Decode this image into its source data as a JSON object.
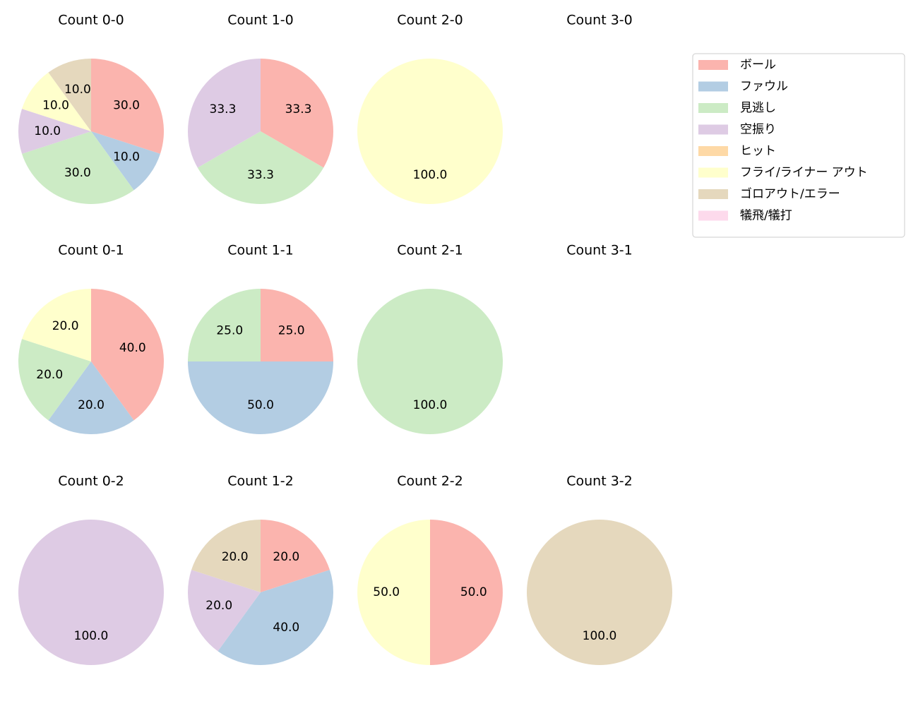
{
  "chart_data": [
    {
      "type": "pie",
      "title": "Count 0-0",
      "legend": "upper right",
      "categories": [
        "ボール",
        "ファウル",
        "見逃し",
        "空振り",
        "ヒット",
        "フライ/ライナー アウト",
        "ゴロアウト/エラー",
        "犠飛/犠打"
      ],
      "colors": [
        "#fbb4ae",
        "#b3cde3",
        "#ccebc5",
        "#decbe4",
        "#fed9a6",
        "#ffffcc",
        "#e5d8bd",
        "#fddaec"
      ],
      "values": [
        30,
        10,
        30,
        10,
        0,
        10,
        10,
        0
      ],
      "value_labels": [
        "30.0",
        "10.0",
        "30.0",
        "10.0",
        null,
        "10.0",
        "10.0",
        null
      ]
    },
    {
      "type": "pie",
      "title": "Count 1-0",
      "categories": [
        "ボール",
        "ファウル",
        "見逃し",
        "空振り",
        "ヒット",
        "フライ/ライナー アウト",
        "ゴロアウト/エラー",
        "犠飛/犠打"
      ],
      "colors": [
        "#fbb4ae",
        "#b3cde3",
        "#ccebc5",
        "#decbe4",
        "#fed9a6",
        "#ffffcc",
        "#e5d8bd",
        "#fddaec"
      ],
      "values": [
        33.3,
        0,
        33.3,
        33.3,
        0,
        0,
        0,
        0
      ]
    },
    {
      "type": "pie",
      "title": "Count 2-0",
      "categories": [
        "ボール",
        "ファウル",
        "見逃し",
        "空振り",
        "ヒット",
        "フライ/ライナー アウト",
        "ゴロアウト/エラー",
        "犠飛/犠打"
      ],
      "colors": [
        "#fbb4ae",
        "#b3cde3",
        "#ccebc5",
        "#decbe4",
        "#fed9a6",
        "#ffffcc",
        "#e5d8bd",
        "#fddaec"
      ],
      "values": [
        0,
        0,
        0,
        0,
        0,
        100,
        0,
        0
      ],
      "value_labels": [
        null,
        null,
        null,
        null,
        null,
        "100.0",
        null,
        null
      ]
    },
    {
      "type": "pie",
      "title": "Count 3-0",
      "categories": [
        "ボール",
        "ファウル",
        "見逃し",
        "空振り",
        "ヒット",
        "フライ/ライナー アウト",
        "ゴロアウト/エラー",
        "犠飛/犠打"
      ],
      "colors": [
        "#fbb4ae",
        "#b3cde3",
        "#ccebc5",
        "#decbe4",
        "#fed9a6",
        "#ffffcc",
        "#e5d8bd",
        "#fddaec"
      ],
      "values": [
        0,
        0,
        0,
        0,
        0,
        0,
        0,
        0
      ]
    },
    {
      "type": "pie",
      "title": "Count 0-1",
      "categories": [
        "ボール",
        "ファウル",
        "見逃し",
        "空振り",
        "ヒット",
        "フライ/ライナー アウト",
        "ゴロアウト/エラー",
        "犠飛/犠打"
      ],
      "colors": [
        "#fbb4ae",
        "#b3cde3",
        "#ccebc5",
        "#decbe4",
        "#fed9a6",
        "#ffffcc",
        "#e5d8bd",
        "#fddaec"
      ],
      "values": [
        40,
        20,
        20,
        0,
        0,
        20,
        0,
        0
      ],
      "value_labels": [
        "40.0",
        "20.0",
        "20.0",
        null,
        null,
        "20.0",
        null,
        null
      ]
    },
    {
      "type": "pie",
      "title": "Count 1-1",
      "categories": [
        "ボール",
        "ファウル",
        "見逃し",
        "空振り",
        "ヒット",
        "フライ/ライナー アウト",
        "ゴロアウト/エラー",
        "犠飛/犠打"
      ],
      "colors": [
        "#fbb4ae",
        "#b3cde3",
        "#ccebc5",
        "#decbe4",
        "#fed9a6",
        "#ffffcc",
        "#e5d8bd",
        "#fddaec"
      ],
      "values": [
        25,
        50,
        25,
        0,
        0,
        0,
        0,
        0
      ],
      "value_labels": [
        "25.0",
        "50.0",
        "25.0",
        null,
        null,
        null,
        null,
        null
      ]
    },
    {
      "type": "pie",
      "title": "Count 2-1",
      "categories": [
        "ボール",
        "ファウル",
        "見逃し",
        "空振り",
        "ヒット",
        "フライ/ライナー アウト",
        "ゴロアウト/エラー",
        "犠飛/犠打"
      ],
      "colors": [
        "#fbb4ae",
        "#b3cde3",
        "#ccebc5",
        "#decbe4",
        "#fed9a6",
        "#ffffcc",
        "#e5d8bd",
        "#fddaec"
      ],
      "values": [
        0,
        0,
        100,
        0,
        0,
        0,
        0,
        0
      ],
      "value_labels": [
        null,
        null,
        "100.0",
        null,
        null,
        null,
        null,
        null
      ]
    },
    {
      "type": "pie",
      "title": "Count 3-1",
      "categories": [
        "ボール",
        "ファウル",
        "見逃し",
        "空振り",
        "ヒット",
        "フライ/ライナー アウト",
        "ゴロアウト/エラー",
        "犠飛/犠打"
      ],
      "colors": [
        "#fbb4ae",
        "#b3cde3",
        "#ccebc5",
        "#decbe4",
        "#fed9a6",
        "#ffffcc",
        "#e5d8bd",
        "#fddaec"
      ],
      "values": [
        0,
        0,
        0,
        0,
        0,
        0,
        0,
        0
      ]
    },
    {
      "type": "pie",
      "title": "Count 0-2",
      "categories": [
        "ボール",
        "ファウル",
        "見逃し",
        "空振り",
        "ヒット",
        "フライ/ライナー アウト",
        "ゴロアウト/エラー",
        "犠飛/犠打"
      ],
      "colors": [
        "#fbb4ae",
        "#b3cde3",
        "#ccebc5",
        "#decbe4",
        "#fed9a6",
        "#ffffcc",
        "#e5d8bd",
        "#fddaec"
      ],
      "values": [
        0,
        0,
        0,
        100,
        0,
        0,
        0,
        0
      ],
      "value_labels": [
        null,
        null,
        null,
        "100.0",
        null,
        null,
        null,
        null
      ]
    },
    {
      "type": "pie",
      "title": "Count 1-2",
      "categories": [
        "ボール",
        "ファウル",
        "見逃し",
        "空振り",
        "ヒット",
        "フライ/ライナー アウト",
        "ゴロアウト/エラー",
        "犠飛/犠打"
      ],
      "colors": [
        "#fbb4ae",
        "#b3cde3",
        "#ccebc5",
        "#decbe4",
        "#fed9a6",
        "#ffffcc",
        "#e5d8bd",
        "#fddaec"
      ],
      "values": [
        20,
        40,
        0,
        20,
        0,
        0,
        20,
        0
      ],
      "value_labels": [
        "20.0",
        "40.0",
        null,
        "20.0",
        null,
        null,
        "20.0",
        null
      ]
    },
    {
      "type": "pie",
      "title": "Count 2-2",
      "categories": [
        "ボール",
        "ファウル",
        "見逃し",
        "空振り",
        "ヒット",
        "フライ/ライナー アウト",
        "ゴロアウト/エラー",
        "犠飛/犠打"
      ],
      "colors": [
        "#fbb4ae",
        "#b3cde3",
        "#ccebc5",
        "#decbe4",
        "#fed9a6",
        "#ffffcc",
        "#e5d8bd",
        "#fddaec"
      ],
      "values": [
        50,
        0,
        0,
        0,
        0,
        50,
        0,
        0
      ],
      "value_labels": [
        "50.0",
        null,
        null,
        null,
        null,
        "50.0",
        null,
        null
      ]
    },
    {
      "type": "pie",
      "title": "Count 3-2",
      "categories": [
        "ボール",
        "ファウル",
        "見逃し",
        "空振り",
        "ヒット",
        "フライ/ライナー アウト",
        "ゴロアウト/エラー",
        "犠飛/犠打"
      ],
      "colors": [
        "#fbb4ae",
        "#b3cde3",
        "#ccebc5",
        "#decbe4",
        "#fed9a6",
        "#ffffcc",
        "#e5d8bd",
        "#fddaec"
      ],
      "values": [
        0,
        0,
        0,
        0,
        0,
        0,
        100,
        0
      ],
      "value_labels": [
        null,
        null,
        null,
        null,
        null,
        null,
        "100.0",
        null
      ]
    }
  ]
}
